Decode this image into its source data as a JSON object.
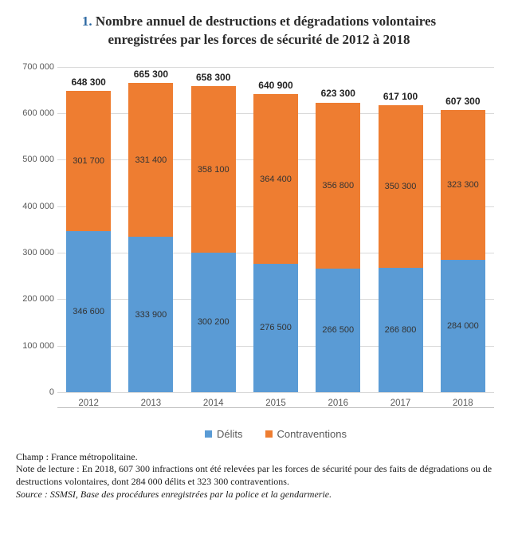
{
  "title_number": "1.",
  "title_line1": "Nombre annuel de destructions et dégradations volontaires",
  "title_line2": "enregistrées par les forces de sécurité de 2012 à 2018",
  "chart": {
    "type": "stacked-bar",
    "y_max": 700000,
    "y_ticks": [
      0,
      100000,
      200000,
      300000,
      400000,
      500000,
      600000,
      700000
    ],
    "y_tick_labels": [
      "0",
      "100 000",
      "200 000",
      "300 000",
      "400 000",
      "500 000",
      "600 000",
      "700 000"
    ],
    "series": [
      {
        "key": "delits",
        "label": "Délits",
        "color": "#5a9bd5"
      },
      {
        "key": "contraventions",
        "label": "Contraventions",
        "color": "#ee7d31"
      }
    ],
    "categories": [
      "2012",
      "2013",
      "2014",
      "2015",
      "2016",
      "2017",
      "2018"
    ],
    "data": [
      {
        "year": "2012",
        "delits": 346600,
        "contraventions": 301700,
        "total": 648300,
        "delits_label": "346 600",
        "contraventions_label": "301 700",
        "total_label": "648 300"
      },
      {
        "year": "2013",
        "delits": 333900,
        "contraventions": 331400,
        "total": 665300,
        "delits_label": "333 900",
        "contraventions_label": "331 400",
        "total_label": "665 300"
      },
      {
        "year": "2014",
        "delits": 300200,
        "contraventions": 358100,
        "total": 658300,
        "delits_label": "300 200",
        "contraventions_label": "358 100",
        "total_label": "658 300"
      },
      {
        "year": "2015",
        "delits": 276500,
        "contraventions": 364400,
        "total": 640900,
        "delits_label": "276 500",
        "contraventions_label": "364 400",
        "total_label": "640 900"
      },
      {
        "year": "2016",
        "delits": 266500,
        "contraventions": 356800,
        "total": 623300,
        "delits_label": "266 500",
        "contraventions_label": "356 800",
        "total_label": "623 300"
      },
      {
        "year": "2017",
        "delits": 266800,
        "contraventions": 350300,
        "total": 617100,
        "delits_label": "266 800",
        "contraventions_label": "350 300",
        "total_label": "617 100"
      },
      {
        "year": "2018",
        "delits": 284000,
        "contraventions": 323300,
        "total": 607300,
        "delits_label": "284 000",
        "contraventions_label": "323 300",
        "total_label": "607 300"
      }
    ],
    "grid_color": "#d9d9d9",
    "background_color": "#ffffff"
  },
  "legend": {
    "delits": "Délits",
    "contraventions": "Contraventions"
  },
  "notes": {
    "champ": "Champ : France métropolitaine.",
    "lecture": "Note de lecture : En 2018, 607 300 infractions ont été relevées par les forces de sécurité pour des faits de dégradations ou de destructions volontaires, dont  284 000 délits et 323 300 contraventions.",
    "source": "Source : SSMSI, Base des procédures enregistrées par la police et la gendarmerie."
  }
}
